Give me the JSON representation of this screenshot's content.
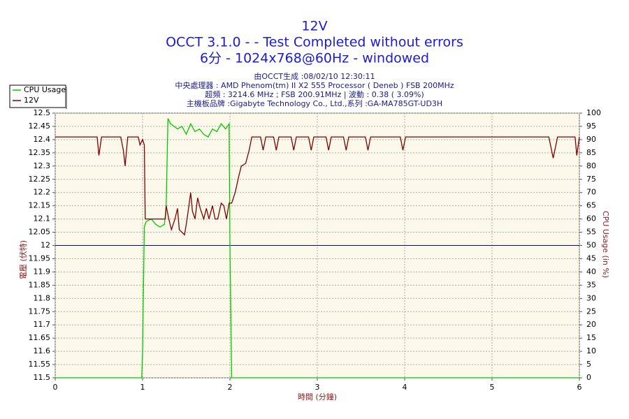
{
  "chart_data": {
    "type": "line",
    "title": "12V",
    "subtitle": [
      "OCCT 3.1.0 -  - Test Completed without errors",
      "6分 - 1024x768@60Hz - windowed"
    ],
    "info": [
      "由OCCT生成 :08/02/10 12:30:11",
      "中央處理器 : AMD Phenom(tm) II X2 555 Processor ( Deneb ) FSB 200MHz",
      "超頻 : 3214.6 MHz ; FSB 200.91MHz | 波動 : 0.38 ( 3.09%)",
      "主機板品牌 :Gigabyte Technology Co., Ltd.,系列 :GA-MA785GT-UD3H"
    ],
    "xlabel": "時間 (分鐘)",
    "ylabel": "電壓 (伏特)",
    "y2label": "CPU Usage (in %)",
    "xlim": [
      0,
      6
    ],
    "xticks": [
      0,
      1,
      2,
      3,
      4,
      5,
      6
    ],
    "ylim": [
      11.5,
      12.5
    ],
    "yticks": [
      11.5,
      11.55,
      11.6,
      11.65,
      11.7,
      11.75,
      11.8,
      11.85,
      11.9,
      11.95,
      12,
      12.05,
      12.1,
      12.15,
      12.2,
      12.25,
      12.3,
      12.35,
      12.4,
      12.45,
      12.5
    ],
    "y2lim": [
      0,
      100
    ],
    "y2ticks": [
      0,
      5,
      10,
      15,
      20,
      25,
      30,
      35,
      40,
      45,
      50,
      55,
      60,
      65,
      70,
      75,
      80,
      85,
      90,
      95,
      100
    ],
    "reference_line": 12,
    "grid": true,
    "legend": "top-left",
    "series": [
      {
        "name": "CPU Usage",
        "color": "#00cc00",
        "axis": "y2",
        "x": [
          0,
          0.99,
          1.0,
          1.02,
          1.04,
          1.1,
          1.15,
          1.2,
          1.25,
          1.27,
          1.29,
          1.32,
          1.36,
          1.4,
          1.45,
          1.5,
          1.55,
          1.6,
          1.65,
          1.7,
          1.75,
          1.8,
          1.85,
          1.9,
          1.95,
          1.99,
          2.0,
          2.02,
          6
        ],
        "values": [
          0,
          0,
          10,
          57,
          59,
          60,
          58,
          57,
          58,
          65,
          98,
          96,
          95,
          94,
          95,
          92,
          96,
          93,
          94,
          92,
          91,
          94,
          93,
          96,
          94,
          96,
          50,
          0,
          0
        ]
      },
      {
        "name": "12V",
        "color": "#800000",
        "axis": "y",
        "x": [
          0,
          0.48,
          0.5,
          0.53,
          0.75,
          0.78,
          0.8,
          0.83,
          0.95,
          0.97,
          1.0,
          1.02,
          1.03,
          1.26,
          1.27,
          1.3,
          1.33,
          1.37,
          1.4,
          1.42,
          1.45,
          1.48,
          1.5,
          1.53,
          1.55,
          1.57,
          1.6,
          1.63,
          1.66,
          1.7,
          1.73,
          1.76,
          1.8,
          1.83,
          1.86,
          1.9,
          1.93,
          1.96,
          1.99,
          2.02,
          2.06,
          2.1,
          2.13,
          2.18,
          2.22,
          2.25,
          2.35,
          2.38,
          2.41,
          2.5,
          2.53,
          2.56,
          2.7,
          2.73,
          2.76,
          2.9,
          2.93,
          2.96,
          3.1,
          3.13,
          3.16,
          3.3,
          3.33,
          3.36,
          3.55,
          3.58,
          3.61,
          3.95,
          3.98,
          4.01,
          5.65,
          5.7,
          5.75,
          5.95,
          5.97,
          6.0
        ],
        "values": [
          12.41,
          12.41,
          12.34,
          12.41,
          12.41,
          12.36,
          12.3,
          12.41,
          12.41,
          12.38,
          12.4,
          12.38,
          12.1,
          12.1,
          12.15,
          12.1,
          12.06,
          12.1,
          12.14,
          12.06,
          12.05,
          12.04,
          12.08,
          12.15,
          12.2,
          12.13,
          12.1,
          12.18,
          12.14,
          12.1,
          12.14,
          12.1,
          12.15,
          12.1,
          12.1,
          12.16,
          12.15,
          12.1,
          12.16,
          12.16,
          12.2,
          12.26,
          12.3,
          12.31,
          12.36,
          12.41,
          12.41,
          12.36,
          12.41,
          12.41,
          12.36,
          12.41,
          12.41,
          12.36,
          12.41,
          12.41,
          12.36,
          12.41,
          12.41,
          12.36,
          12.41,
          12.41,
          12.36,
          12.41,
          12.41,
          12.36,
          12.41,
          12.41,
          12.36,
          12.41,
          12.41,
          12.33,
          12.41,
          12.41,
          12.34,
          12.41
        ]
      }
    ]
  }
}
